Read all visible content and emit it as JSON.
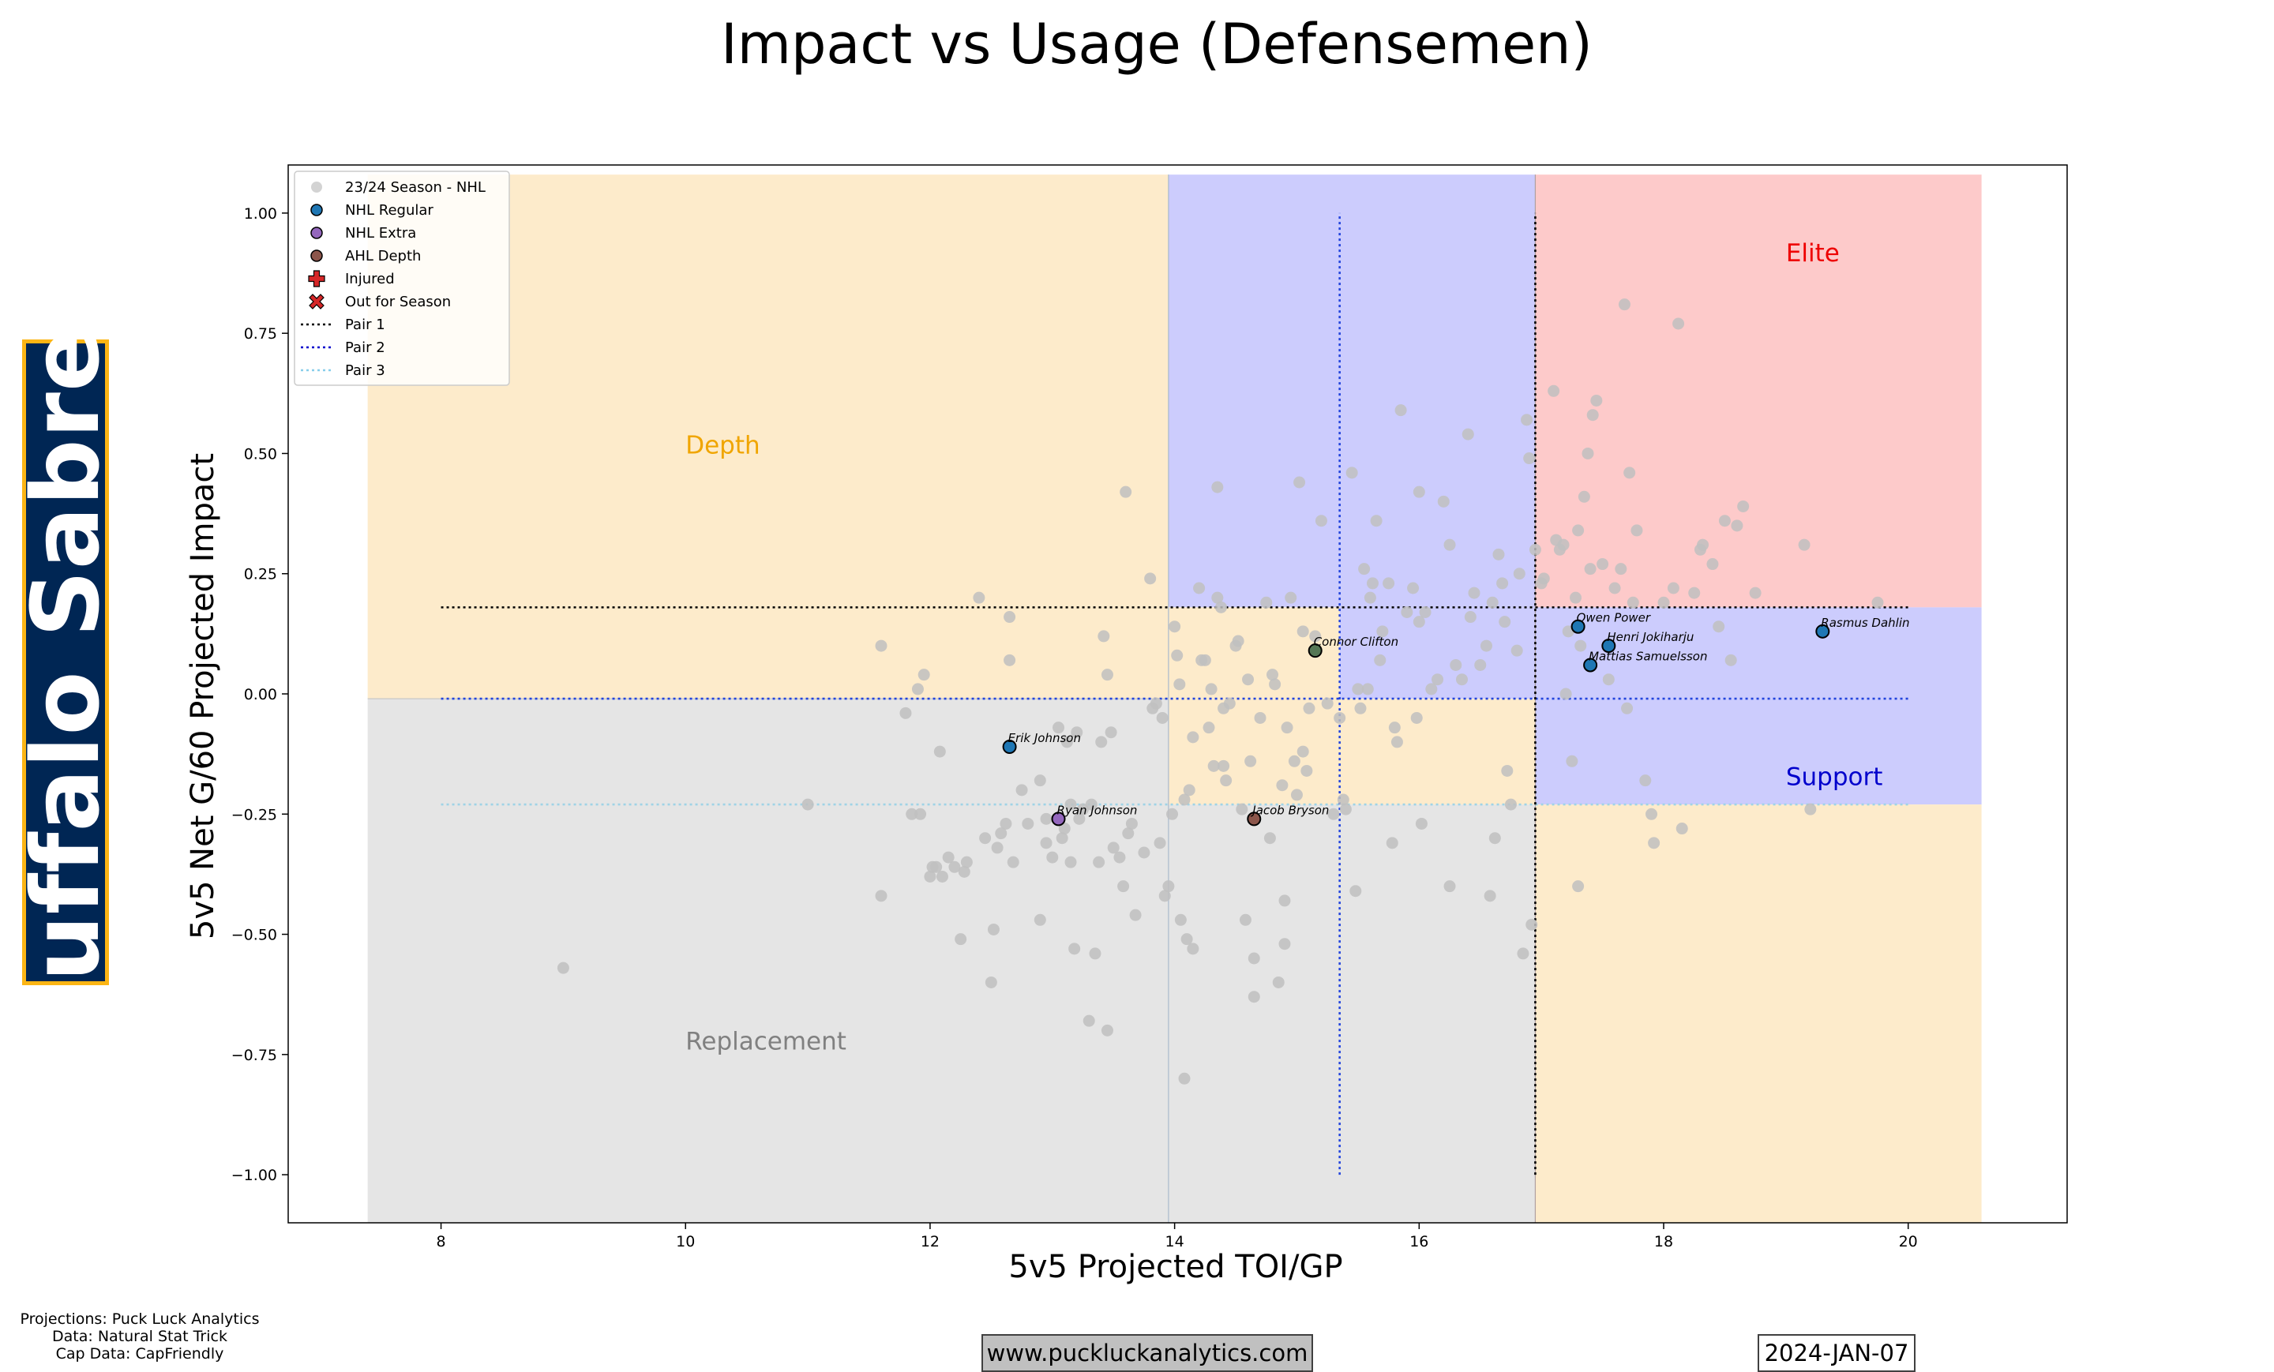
{
  "brand": {
    "team_name": "Buffalo Sabres",
    "team_bg": "#002654",
    "team_border": "#FCB514",
    "website": "www.puckluckanalytics.com",
    "date": "2024-JAN-07",
    "credits": [
      "Projections: Puck Luck Analytics",
      "Data: Natural Stat Trick",
      "Cap Data: CapFriendly"
    ]
  },
  "chart_data": {
    "type": "scatter",
    "title": "Impact vs Usage (Defensemen)",
    "xlabel": "5v5 Projected TOI/GP",
    "ylabel": "5v5 Net G/60 Projected Impact",
    "xlim": [
      6.75,
      21.3
    ],
    "ylim": [
      -1.1,
      1.1
    ],
    "xticks": [
      8,
      10,
      12,
      14,
      16,
      18,
      20
    ],
    "yticks": [
      -1.0,
      -0.75,
      -0.5,
      -0.25,
      0.0,
      0.25,
      0.5,
      0.75,
      1.0
    ],
    "ytick_labels": [
      "−1.00",
      "−0.75",
      "−0.50",
      "−0.25",
      "0.00",
      "0.25",
      "0.50",
      "0.75",
      "1.00"
    ],
    "grid": false,
    "legend_position": "top-left",
    "legend": [
      {
        "label": "23/24 Season - NHL",
        "marker": "circle",
        "color": "#d3d3d3"
      },
      {
        "label": "NHL Regular",
        "marker": "circle",
        "color": "#1f77b4"
      },
      {
        "label": "NHL Extra",
        "marker": "circle",
        "color": "#9467bd"
      },
      {
        "label": "AHL Depth",
        "marker": "circle",
        "color": "#8c564b"
      },
      {
        "label": "Injured",
        "marker": "plus",
        "color": "#d62728"
      },
      {
        "label": "Out for Season",
        "marker": "x",
        "color": "#d62728"
      },
      {
        "label": "Pair 1",
        "marker": "line",
        "color": "#000000"
      },
      {
        "label": "Pair 2",
        "marker": "line",
        "color": "#0000cc"
      },
      {
        "label": "Pair 3",
        "marker": "line",
        "color": "#87ceeb"
      }
    ],
    "thresholds": {
      "pair1_toi": 16.95,
      "pair2_toi": 15.35,
      "pair3_toi": 13.95,
      "pair1_impact": 0.18,
      "pair2_impact": -0.01,
      "pair3_impact": -0.23,
      "x_min": 7.4,
      "x_max": 20.6,
      "y_min": -1.1,
      "y_max": 1.08
    },
    "line_extent": {
      "x_start": 8,
      "x_end": 20,
      "y_start": -1.0,
      "y_end": 1.0
    },
    "zone_colors": {
      "depth": "#fdebcb",
      "support": "#ccccfd",
      "elite": "#fdcaca",
      "replacement": "#e5e5e5"
    },
    "zone_labels": [
      {
        "text": "Elite",
        "x": 19.0,
        "y": 0.9,
        "color": "#ee0000"
      },
      {
        "text": "Depth",
        "x": 10.0,
        "y": 0.5,
        "color": "#f0a500"
      },
      {
        "text": "Support",
        "x": 19.0,
        "y": -0.19,
        "color": "#0000cc"
      },
      {
        "text": "Replacement",
        "x": 10.0,
        "y": -0.74,
        "color": "#808080"
      }
    ],
    "league_points": [
      [
        9.0,
        -0.57
      ],
      [
        11.0,
        -0.23
      ],
      [
        11.6,
        0.1
      ],
      [
        11.6,
        -0.42
      ],
      [
        11.8,
        -0.04
      ],
      [
        11.85,
        -0.25
      ],
      [
        11.9,
        0.01
      ],
      [
        11.92,
        -0.25
      ],
      [
        11.95,
        0.04
      ],
      [
        12.0,
        -0.38
      ],
      [
        12.02,
        -0.36
      ],
      [
        12.05,
        -0.36
      ],
      [
        12.08,
        -0.12
      ],
      [
        12.1,
        -0.38
      ],
      [
        12.15,
        -0.34
      ],
      [
        12.2,
        -0.36
      ],
      [
        12.25,
        -0.51
      ],
      [
        12.28,
        -0.37
      ],
      [
        12.3,
        -0.35
      ],
      [
        12.4,
        0.2
      ],
      [
        12.45,
        -0.3
      ],
      [
        12.5,
        -0.6
      ],
      [
        12.52,
        -0.49
      ],
      [
        12.55,
        -0.32
      ],
      [
        12.58,
        -0.29
      ],
      [
        12.62,
        -0.27
      ],
      [
        12.65,
        0.16
      ],
      [
        12.65,
        0.07
      ],
      [
        12.68,
        -0.35
      ],
      [
        12.75,
        -0.2
      ],
      [
        12.8,
        -0.27
      ],
      [
        12.9,
        -0.18
      ],
      [
        12.9,
        -0.47
      ],
      [
        12.95,
        -0.31
      ],
      [
        12.95,
        -0.26
      ],
      [
        13.0,
        -0.34
      ],
      [
        13.05,
        -0.07
      ],
      [
        13.08,
        -0.3
      ],
      [
        13.1,
        -0.28
      ],
      [
        13.12,
        -0.1
      ],
      [
        13.15,
        -0.35
      ],
      [
        13.15,
        -0.23
      ],
      [
        13.18,
        -0.53
      ],
      [
        13.2,
        -0.08
      ],
      [
        13.22,
        -0.26
      ],
      [
        13.25,
        -0.24
      ],
      [
        13.3,
        -0.68
      ],
      [
        13.32,
        -0.23
      ],
      [
        13.35,
        -0.54
      ],
      [
        13.38,
        -0.35
      ],
      [
        13.4,
        -0.1
      ],
      [
        13.42,
        0.12
      ],
      [
        13.45,
        0.04
      ],
      [
        13.45,
        -0.7
      ],
      [
        13.48,
        -0.08
      ],
      [
        13.5,
        -0.32
      ],
      [
        13.55,
        -0.34
      ],
      [
        13.58,
        -0.4
      ],
      [
        13.6,
        0.42
      ],
      [
        13.62,
        -0.29
      ],
      [
        13.65,
        -0.27
      ],
      [
        13.68,
        -0.46
      ],
      [
        13.75,
        -0.33
      ],
      [
        13.8,
        0.24
      ],
      [
        13.82,
        -0.03
      ],
      [
        13.85,
        -0.02
      ],
      [
        13.88,
        -0.31
      ],
      [
        13.9,
        -0.05
      ],
      [
        13.92,
        -0.42
      ],
      [
        13.95,
        -0.4
      ],
      [
        13.98,
        -0.25
      ],
      [
        14.0,
        0.14
      ],
      [
        14.02,
        0.08
      ],
      [
        14.04,
        0.02
      ],
      [
        14.05,
        -0.47
      ],
      [
        14.08,
        -0.8
      ],
      [
        14.08,
        -0.22
      ],
      [
        14.1,
        -0.51
      ],
      [
        14.12,
        -0.2
      ],
      [
        14.15,
        -0.53
      ],
      [
        14.15,
        -0.09
      ],
      [
        14.2,
        0.22
      ],
      [
        14.22,
        0.07
      ],
      [
        14.25,
        0.07
      ],
      [
        14.28,
        -0.07
      ],
      [
        14.3,
        0.01
      ],
      [
        14.32,
        -0.15
      ],
      [
        14.35,
        0.43
      ],
      [
        14.35,
        0.2
      ],
      [
        14.38,
        0.18
      ],
      [
        14.4,
        -0.03
      ],
      [
        14.4,
        -0.15
      ],
      [
        14.42,
        -0.18
      ],
      [
        14.45,
        -0.02
      ],
      [
        14.5,
        0.1
      ],
      [
        14.52,
        0.11
      ],
      [
        14.55,
        -0.24
      ],
      [
        14.58,
        -0.47
      ],
      [
        14.6,
        0.03
      ],
      [
        14.62,
        -0.14
      ],
      [
        14.65,
        -0.55
      ],
      [
        14.65,
        -0.63
      ],
      [
        14.7,
        -0.05
      ],
      [
        14.75,
        0.19
      ],
      [
        14.78,
        -0.3
      ],
      [
        14.8,
        0.04
      ],
      [
        14.82,
        0.02
      ],
      [
        14.85,
        -0.6
      ],
      [
        14.88,
        -0.19
      ],
      [
        14.9,
        -0.43
      ],
      [
        14.9,
        -0.52
      ],
      [
        14.92,
        -0.07
      ],
      [
        14.95,
        0.2
      ],
      [
        14.98,
        -0.14
      ],
      [
        15.0,
        -0.21
      ],
      [
        15.02,
        0.44
      ],
      [
        15.05,
        -0.12
      ],
      [
        15.05,
        0.13
      ],
      [
        15.08,
        -0.16
      ],
      [
        15.1,
        -0.03
      ],
      [
        15.15,
        0.12
      ],
      [
        15.2,
        0.36
      ],
      [
        15.25,
        -0.02
      ],
      [
        15.3,
        -0.25
      ],
      [
        15.35,
        -0.05
      ],
      [
        15.38,
        -0.22
      ],
      [
        15.4,
        -0.24
      ],
      [
        15.45,
        0.46
      ],
      [
        15.48,
        -0.41
      ],
      [
        15.5,
        0.01
      ],
      [
        15.52,
        -0.03
      ],
      [
        15.55,
        0.26
      ],
      [
        15.58,
        0.01
      ],
      [
        15.6,
        0.2
      ],
      [
        15.62,
        0.23
      ],
      [
        15.65,
        0.36
      ],
      [
        15.68,
        0.07
      ],
      [
        15.7,
        0.13
      ],
      [
        15.75,
        0.23
      ],
      [
        15.78,
        -0.31
      ],
      [
        15.8,
        -0.07
      ],
      [
        15.82,
        -0.1
      ],
      [
        15.85,
        0.59
      ],
      [
        15.9,
        0.17
      ],
      [
        15.95,
        0.22
      ],
      [
        15.98,
        -0.05
      ],
      [
        16.0,
        0.15
      ],
      [
        16.0,
        0.42
      ],
      [
        16.02,
        -0.27
      ],
      [
        16.05,
        0.17
      ],
      [
        16.1,
        0.01
      ],
      [
        16.15,
        0.03
      ],
      [
        16.2,
        0.4
      ],
      [
        16.25,
        0.31
      ],
      [
        16.25,
        -0.4
      ],
      [
        16.3,
        0.06
      ],
      [
        16.35,
        0.03
      ],
      [
        16.4,
        0.54
      ],
      [
        16.42,
        0.16
      ],
      [
        16.45,
        0.21
      ],
      [
        16.5,
        0.06
      ],
      [
        16.55,
        0.1
      ],
      [
        16.58,
        -0.42
      ],
      [
        16.6,
        0.19
      ],
      [
        16.62,
        -0.3
      ],
      [
        16.65,
        0.29
      ],
      [
        16.68,
        0.23
      ],
      [
        16.7,
        0.15
      ],
      [
        16.72,
        -0.16
      ],
      [
        16.75,
        -0.23
      ],
      [
        16.8,
        0.09
      ],
      [
        16.82,
        0.25
      ],
      [
        16.85,
        -0.54
      ],
      [
        16.88,
        0.57
      ],
      [
        16.9,
        0.49
      ],
      [
        16.92,
        -0.48
      ],
      [
        16.95,
        0.3
      ],
      [
        17.0,
        0.23
      ],
      [
        17.02,
        0.24
      ],
      [
        17.1,
        0.63
      ],
      [
        17.12,
        0.32
      ],
      [
        17.15,
        0.3
      ],
      [
        17.18,
        0.31
      ],
      [
        17.2,
        0.0
      ],
      [
        17.22,
        0.13
      ],
      [
        17.25,
        -0.14
      ],
      [
        17.28,
        0.2
      ],
      [
        17.3,
        0.34
      ],
      [
        17.32,
        0.1
      ],
      [
        17.35,
        0.41
      ],
      [
        17.38,
        0.5
      ],
      [
        17.4,
        0.26
      ],
      [
        17.42,
        0.58
      ],
      [
        17.45,
        0.61
      ],
      [
        17.5,
        0.27
      ],
      [
        17.55,
        0.03
      ],
      [
        17.6,
        0.22
      ],
      [
        17.65,
        0.26
      ],
      [
        17.68,
        0.81
      ],
      [
        17.7,
        -0.03
      ],
      [
        17.72,
        0.46
      ],
      [
        17.75,
        0.19
      ],
      [
        17.78,
        0.34
      ],
      [
        17.85,
        -0.18
      ],
      [
        17.9,
        -0.25
      ],
      [
        17.92,
        -0.31
      ],
      [
        18.0,
        0.19
      ],
      [
        18.08,
        0.22
      ],
      [
        18.12,
        0.77
      ],
      [
        18.15,
        -0.28
      ],
      [
        18.25,
        0.21
      ],
      [
        18.3,
        0.3
      ],
      [
        18.32,
        0.31
      ],
      [
        18.4,
        0.27
      ],
      [
        18.45,
        0.14
      ],
      [
        18.5,
        0.36
      ],
      [
        18.55,
        0.07
      ],
      [
        18.6,
        0.35
      ],
      [
        18.65,
        0.39
      ],
      [
        18.75,
        0.21
      ],
      [
        19.15,
        0.31
      ],
      [
        19.75,
        0.19
      ],
      [
        19.2,
        -0.24
      ],
      [
        17.3,
        -0.4
      ]
    ],
    "players": [
      {
        "name": "Rasmus Dahlin",
        "toi": 19.3,
        "impact": 0.13,
        "status": "NHL Regular",
        "color": "#1f77b4"
      },
      {
        "name": "Owen Power",
        "toi": 17.3,
        "impact": 0.14,
        "status": "NHL Regular",
        "color": "#1f77b4"
      },
      {
        "name": "Henri Jokiharju",
        "toi": 17.55,
        "impact": 0.1,
        "status": "NHL Regular",
        "color": "#1f77b4"
      },
      {
        "name": "Mattias Samuelsson",
        "toi": 17.4,
        "impact": 0.06,
        "status": "NHL Regular",
        "color": "#1f77b4"
      },
      {
        "name": "Connor Clifton",
        "toi": 15.15,
        "impact": 0.09,
        "status": "AHL Depth",
        "color": "#557755"
      },
      {
        "name": "Erik Johnson",
        "toi": 12.65,
        "impact": -0.11,
        "status": "NHL Regular",
        "color": "#1f77b4"
      },
      {
        "name": "Ryan Johnson",
        "toi": 13.05,
        "impact": -0.26,
        "status": "NHL Extra",
        "color": "#9467bd"
      },
      {
        "name": "Jacob Bryson",
        "toi": 14.65,
        "impact": -0.26,
        "status": "AHL Depth",
        "color": "#8c564b"
      }
    ]
  }
}
